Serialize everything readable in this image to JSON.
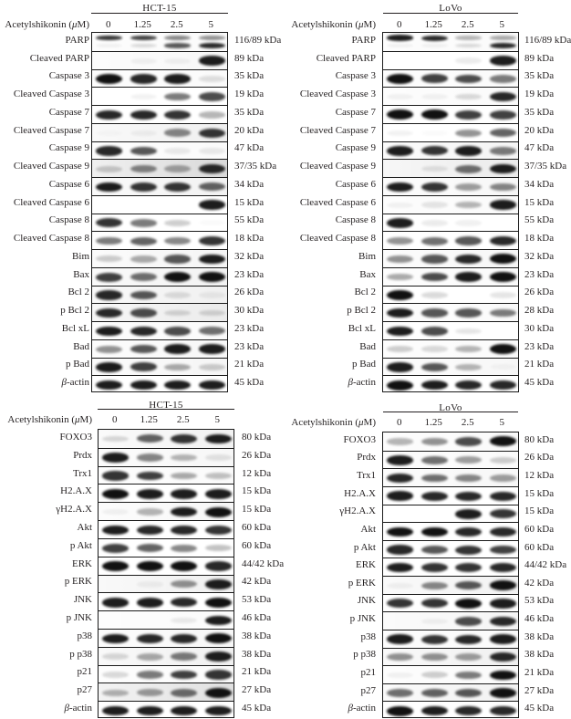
{
  "figure": {
    "treatment_label": "Acetylshikonin (μM)",
    "concentrations": [
      "0",
      "1.25",
      "2.5",
      "5"
    ],
    "band_color": "#111111",
    "panels": [
      {
        "id": "top-left",
        "cell_line": "HCT-15",
        "rows": [
          {
            "protein": "PARP",
            "kda": "116/89 kDa",
            "bands": [
              0.85,
              0.8,
              0.5,
              0.45
            ],
            "second_bands": [
              0.05,
              0.15,
              0.7,
              0.9
            ],
            "haze": 0.02
          },
          {
            "protein": "Cleaved PARP",
            "kda": "89 kDa",
            "bands": [
              0.0,
              0.05,
              0.05,
              0.95
            ],
            "haze": 0.03
          },
          {
            "protein": "Caspase 3",
            "kda": "35 kDa",
            "bands": [
              1.0,
              0.9,
              0.95,
              0.12
            ],
            "haze": 0.02
          },
          {
            "protein": "Cleaved Caspase 3",
            "kda": "19 kDa",
            "bands": [
              0.0,
              0.05,
              0.55,
              0.75
            ],
            "haze": 0.0
          },
          {
            "protein": "Caspase 7",
            "kda": "35 kDa",
            "bands": [
              0.9,
              0.9,
              0.85,
              0.3
            ],
            "haze": 0.0
          },
          {
            "protein": "Cleaved Caspase 7",
            "kda": "20 kDa",
            "bands": [
              0.02,
              0.05,
              0.5,
              0.85
            ],
            "haze": 0.06
          },
          {
            "protein": "Caspase 9",
            "kda": "47 kDa",
            "bands": [
              0.9,
              0.7,
              0.08,
              0.08
            ],
            "haze": 0.02
          },
          {
            "protein": "Cleaved Caspase 9",
            "kda": "37/35 kDa",
            "bands": [
              0.2,
              0.5,
              0.35,
              0.9
            ],
            "haze": 0.15
          },
          {
            "protein": "Caspase 6",
            "kda": "34 kDa",
            "bands": [
              0.95,
              0.85,
              0.85,
              0.65
            ],
            "haze": 0.05
          },
          {
            "protein": "Cleaved Caspase 6",
            "kda": "15 kDa",
            "bands": [
              0.0,
              0.0,
              0.0,
              0.95
            ],
            "haze": 0.0
          },
          {
            "protein": "Caspase 8",
            "kda": "55 kDa",
            "bands": [
              0.85,
              0.55,
              0.2,
              0.02
            ],
            "haze": 0.0
          },
          {
            "protein": "Cleaved Caspase 8",
            "kda": "18 kDa",
            "bands": [
              0.55,
              0.65,
              0.5,
              0.85
            ],
            "haze": 0.0
          },
          {
            "protein": "Bim",
            "kda": "32 kDa",
            "bands": [
              0.2,
              0.35,
              0.7,
              0.95
            ],
            "haze": 0.04
          },
          {
            "protein": "Bax",
            "kda": "23 kDa",
            "bands": [
              0.8,
              0.6,
              1.0,
              1.0
            ],
            "haze": 0.05
          },
          {
            "protein": "Bcl 2",
            "kda": "26 kDa",
            "bands": [
              0.9,
              0.7,
              0.12,
              0.06
            ],
            "haze": 0.06
          },
          {
            "protein": "p Bcl 2",
            "kda": "30 kDa",
            "bands": [
              0.9,
              0.75,
              0.15,
              0.15
            ],
            "haze": 0.08
          },
          {
            "protein": "Bcl xL",
            "kda": "23 kDa",
            "bands": [
              0.95,
              0.9,
              0.75,
              0.6
            ],
            "haze": 0.02
          },
          {
            "protein": "Bad",
            "kda": "23 kDa",
            "bands": [
              0.45,
              0.7,
              0.95,
              0.95
            ],
            "haze": 0.03
          },
          {
            "protein": "p Bad",
            "kda": "21 kDa",
            "bands": [
              0.95,
              0.8,
              0.35,
              0.2
            ],
            "haze": 0.04
          },
          {
            "protein": "β-actin",
            "kda": "45 kDa",
            "bands": [
              0.95,
              0.95,
              0.95,
              0.95
            ],
            "haze": 0.0
          }
        ]
      },
      {
        "id": "top-right",
        "cell_line": "LoVo",
        "rows": [
          {
            "protein": "PARP",
            "kda": "116/89 kDa",
            "bands": [
              0.95,
              0.9,
              0.3,
              0.35
            ],
            "second_bands": [
              0.05,
              0.05,
              0.15,
              0.9
            ],
            "haze": 0.02
          },
          {
            "protein": "Cleaved PARP",
            "kda": "89 kDa",
            "bands": [
              0.0,
              0.0,
              0.08,
              0.95
            ],
            "haze": 0.0
          },
          {
            "protein": "Caspase 3",
            "kda": "35 kDa",
            "bands": [
              1.0,
              0.8,
              0.75,
              0.55
            ],
            "haze": 0.02
          },
          {
            "protein": "Cleaved Caspase 3",
            "kda": "19 kDa",
            "bands": [
              0.05,
              0.05,
              0.15,
              0.9
            ],
            "haze": 0.02
          },
          {
            "protein": "Caspase 7",
            "kda": "35 kDa",
            "bands": [
              1.0,
              1.0,
              0.8,
              0.8
            ],
            "haze": 0.0
          },
          {
            "protein": "Cleaved Caspase 7",
            "kda": "20 kDa",
            "bands": [
              0.05,
              0.02,
              0.45,
              0.65
            ],
            "haze": 0.0
          },
          {
            "protein": "Caspase 9",
            "kda": "47 kDa",
            "bands": [
              0.95,
              0.85,
              0.95,
              0.55
            ],
            "haze": 0.04
          },
          {
            "protein": "Cleaved Caspase 9",
            "kda": "37/35 kDa",
            "bands": [
              0.0,
              0.1,
              0.6,
              0.95
            ],
            "haze": 0.08
          },
          {
            "protein": "Caspase 6",
            "kda": "34 kDa",
            "bands": [
              0.95,
              0.85,
              0.4,
              0.5
            ],
            "haze": 0.03
          },
          {
            "protein": "Cleaved Caspase 6",
            "kda": "15 kDa",
            "bands": [
              0.05,
              0.1,
              0.3,
              0.95
            ],
            "haze": 0.02
          },
          {
            "protein": "Caspase 8",
            "kda": "55 kDa",
            "bands": [
              0.95,
              0.08,
              0.06,
              0.0
            ],
            "haze": 0.0
          },
          {
            "protein": "Cleaved Caspase 8",
            "kda": "18 kDa",
            "bands": [
              0.45,
              0.6,
              0.7,
              0.9
            ],
            "haze": 0.0
          },
          {
            "protein": "Bim",
            "kda": "32 kDa",
            "bands": [
              0.45,
              0.7,
              0.9,
              1.0
            ],
            "haze": 0.03
          },
          {
            "protein": "Bax",
            "kda": "23 kDa",
            "bands": [
              0.35,
              0.75,
              0.95,
              1.0
            ],
            "haze": 0.02
          },
          {
            "protein": "Bcl 2",
            "kda": "26 kDa",
            "bands": [
              1.0,
              0.15,
              0.0,
              0.1
            ],
            "haze": 0.0
          },
          {
            "protein": "p Bcl 2",
            "kda": "28 kDa",
            "bands": [
              0.95,
              0.7,
              0.7,
              0.55
            ],
            "haze": 0.02
          },
          {
            "protein": "Bcl xL",
            "kda": "30 kDa",
            "bands": [
              0.95,
              0.75,
              0.1,
              0.0
            ],
            "haze": 0.0
          },
          {
            "protein": "Bad",
            "kda": "23 kDa",
            "bands": [
              0.2,
              0.15,
              0.3,
              1.0
            ],
            "haze": 0.02
          },
          {
            "protein": "p Bad",
            "kda": "21 kDa",
            "bands": [
              0.95,
              0.7,
              0.3,
              0.03
            ],
            "haze": 0.03
          },
          {
            "protein": "β-actin",
            "kda": "45 kDa",
            "bands": [
              1.0,
              0.95,
              0.9,
              0.9
            ],
            "haze": 0.0
          }
        ]
      },
      {
        "id": "bottom-left",
        "cell_line": "HCT-15",
        "rows": [
          {
            "protein": "FOXO3",
            "kda": "80 kDa",
            "bands": [
              0.15,
              0.65,
              0.85,
              0.95
            ],
            "haze": 0.05
          },
          {
            "protein": "Prdx",
            "kda": "26 kDa",
            "bands": [
              0.95,
              0.5,
              0.3,
              0.1
            ],
            "haze": 0.03
          },
          {
            "protein": "Trx1",
            "kda": "12 kDa",
            "bands": [
              0.85,
              0.8,
              0.35,
              0.25
            ],
            "haze": 0.02
          },
          {
            "protein": "H2.A.X",
            "kda": "15 kDa",
            "bands": [
              1.0,
              0.95,
              0.95,
              0.95
            ],
            "haze": 0.0
          },
          {
            "protein": "γH2.A.X",
            "kda": "15 kDa",
            "bands": [
              0.05,
              0.3,
              0.95,
              1.0
            ],
            "haze": 0.03
          },
          {
            "protein": "Akt",
            "kda": "60 kDa",
            "bands": [
              0.95,
              0.9,
              0.9,
              0.85
            ],
            "haze": 0.0
          },
          {
            "protein": "p Akt",
            "kda": "60 kDa",
            "bands": [
              0.8,
              0.65,
              0.5,
              0.25
            ],
            "haze": 0.0
          },
          {
            "protein": "ERK",
            "kda": "44/42 kDa",
            "bands": [
              1.0,
              1.0,
              1.0,
              0.9
            ],
            "haze": 0.0
          },
          {
            "protein": "p ERK",
            "kda": "42 kDa",
            "bands": [
              0.0,
              0.05,
              0.45,
              0.95
            ],
            "haze": 0.06
          },
          {
            "protein": "JNK",
            "kda": "53 kDa",
            "bands": [
              0.95,
              0.95,
              0.9,
              1.0
            ],
            "haze": 0.0
          },
          {
            "protein": "p JNK",
            "kda": "46 kDa",
            "bands": [
              0.0,
              0.0,
              0.08,
              0.95
            ],
            "haze": 0.02
          },
          {
            "protein": "p38",
            "kda": "38 kDa",
            "bands": [
              0.95,
              0.9,
              0.9,
              1.0
            ],
            "haze": 0.03
          },
          {
            "protein": "p p38",
            "kda": "38 kDa",
            "bands": [
              0.15,
              0.35,
              0.55,
              0.95
            ],
            "haze": 0.06
          },
          {
            "protein": "p21",
            "kda": "21 kDa",
            "bands": [
              0.15,
              0.55,
              0.8,
              0.85
            ],
            "haze": 0.02
          },
          {
            "protein": "p27",
            "kda": "27 kDa",
            "bands": [
              0.3,
              0.4,
              0.6,
              1.0
            ],
            "haze": 0.12
          },
          {
            "protein": "β-actin",
            "kda": "45 kDa",
            "bands": [
              0.95,
              0.95,
              0.95,
              0.95
            ],
            "haze": 0.0
          }
        ]
      },
      {
        "id": "bottom-right",
        "cell_line": "LoVo",
        "rows": [
          {
            "protein": "FOXO3",
            "kda": "80 kDa",
            "bands": [
              0.3,
              0.45,
              0.75,
              1.0
            ],
            "haze": 0.02
          },
          {
            "protein": "Prdx",
            "kda": "26 kDa",
            "bands": [
              0.95,
              0.6,
              0.4,
              0.2
            ],
            "haze": 0.02
          },
          {
            "protein": "Trx1",
            "kda": "12 kDa",
            "bands": [
              0.9,
              0.6,
              0.5,
              0.4
            ],
            "haze": 0.03
          },
          {
            "protein": "H2.A.X",
            "kda": "15 kDa",
            "bands": [
              0.95,
              0.9,
              0.9,
              0.9
            ],
            "haze": 0.0
          },
          {
            "protein": "γH2.A.X",
            "kda": "15 kDa",
            "bands": [
              0.0,
              0.0,
              0.95,
              0.85
            ],
            "haze": 0.0
          },
          {
            "protein": "Akt",
            "kda": "60 kDa",
            "bands": [
              1.0,
              1.0,
              0.9,
              0.9
            ],
            "haze": 0.0
          },
          {
            "protein": "p Akt",
            "kda": "60 kDa",
            "bands": [
              0.9,
              0.7,
              0.85,
              0.8
            ],
            "haze": 0.0
          },
          {
            "protein": "ERK",
            "kda": "44/42 kDa",
            "bands": [
              0.95,
              0.85,
              0.85,
              0.9
            ],
            "haze": 0.0
          },
          {
            "protein": "p ERK",
            "kda": "42 kDa",
            "bands": [
              0.05,
              0.5,
              0.7,
              1.0
            ],
            "haze": 0.05
          },
          {
            "protein": "JNK",
            "kda": "53 kDa",
            "bands": [
              0.85,
              0.85,
              1.0,
              0.95
            ],
            "haze": 0.0
          },
          {
            "protein": "p JNK",
            "kda": "46 kDa",
            "bands": [
              0.0,
              0.05,
              0.75,
              0.9
            ],
            "haze": 0.04
          },
          {
            "protein": "p38",
            "kda": "38 kDa",
            "bands": [
              0.95,
              0.85,
              0.9,
              0.95
            ],
            "haze": 0.02
          },
          {
            "protein": "p p38",
            "kda": "38 kDa",
            "bands": [
              0.45,
              0.45,
              0.4,
              0.9
            ],
            "haze": 0.06
          },
          {
            "protein": "p21",
            "kda": "21 kDa",
            "bands": [
              0.05,
              0.2,
              0.55,
              1.0
            ],
            "haze": 0.02
          },
          {
            "protein": "p27",
            "kda": "27 kDa",
            "bands": [
              0.6,
              0.65,
              0.7,
              1.0
            ],
            "haze": 0.05
          },
          {
            "protein": "β-actin",
            "kda": "45 kDa",
            "bands": [
              1.0,
              0.95,
              0.9,
              0.9
            ],
            "haze": 0.0
          }
        ]
      }
    ]
  }
}
